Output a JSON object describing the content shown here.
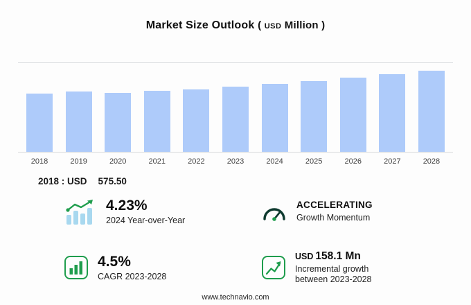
{
  "title": {
    "main": "Market Size Outlook",
    "unit_open": "(",
    "unit_currency": "USD",
    "unit_text": "Million",
    "unit_close": ")"
  },
  "chart_data": {
    "type": "bar",
    "title": "Market Size Outlook (USD Million)",
    "categories": [
      "2018",
      "2019",
      "2020",
      "2021",
      "2022",
      "2023",
      "2024",
      "2025",
      "2026",
      "2027",
      "2028"
    ],
    "values": [
      575.5,
      591,
      579,
      599,
      617,
      640,
      667.1,
      699,
      731,
      764,
      798.1
    ],
    "unit": "USD Million",
    "bar_color": "#aecbfa",
    "ylim": [
      0,
      840
    ],
    "grid": "top line and baseline only",
    "legend": "none"
  },
  "annotation": {
    "base_label": "2018 : USD",
    "base_value": "575.50"
  },
  "stats": [
    {
      "id": "yoy",
      "icon": "bar-growth-icon",
      "value": "4.23%",
      "caption": "2024 Year-over-Year"
    },
    {
      "id": "momentum",
      "icon": "gauge-icon",
      "value": "ACCELERATING",
      "caption": "Growth Momentum"
    },
    {
      "id": "cagr",
      "icon": "boxed-bars-icon",
      "value": "4.5%",
      "caption": "CAGR 2023-2028"
    },
    {
      "id": "incremental",
      "icon": "trend-line-icon",
      "value_prefix": "USD",
      "value": "158.1 Mn",
      "caption_line1": "Incremental growth",
      "caption_line2": "between 2023-2028"
    }
  ],
  "footer": {
    "url": "www.technavio.com"
  },
  "colors": {
    "bar": "#aecbfa",
    "accent_green": "#1f9d4d",
    "gauge_dark": "#0e3a2f",
    "text": "#111111"
  }
}
